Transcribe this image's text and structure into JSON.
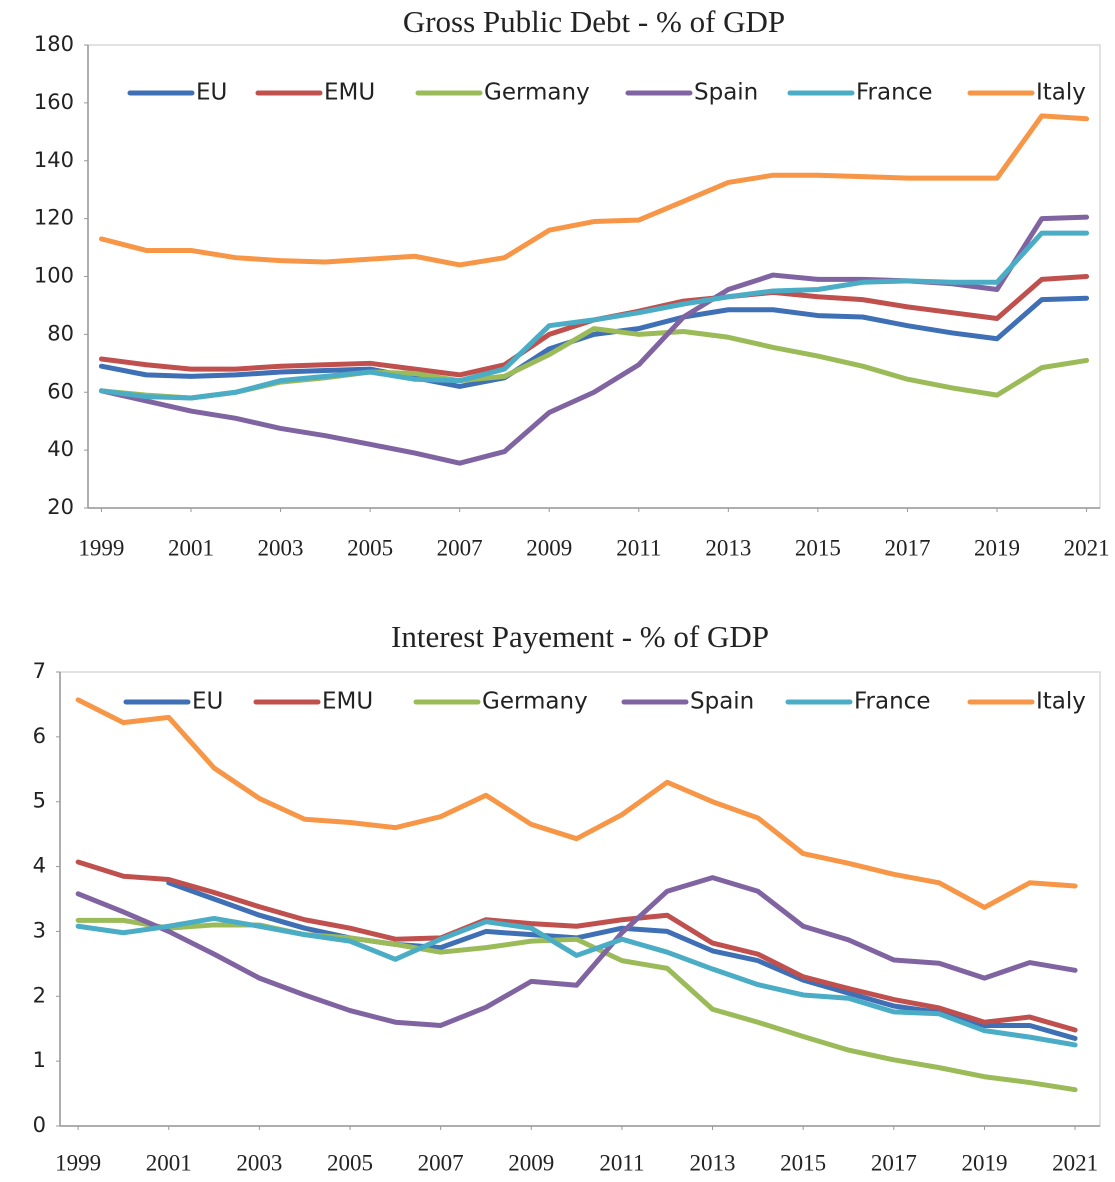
{
  "chart_data": [
    {
      "type": "line",
      "title": "Gross Public Debt - % of GDP",
      "x": [
        1999,
        2000,
        2001,
        2002,
        2003,
        2004,
        2005,
        2006,
        2007,
        2008,
        2009,
        2010,
        2011,
        2012,
        2013,
        2014,
        2015,
        2016,
        2017,
        2018,
        2019,
        2020,
        2021
      ],
      "xlim": [
        1998.7,
        2021.3
      ],
      "xticks": [
        1999,
        2001,
        2003,
        2005,
        2007,
        2009,
        2011,
        2013,
        2015,
        2017,
        2019,
        2021
      ],
      "ylim": [
        20,
        180
      ],
      "yticks": [
        20,
        40,
        60,
        80,
        100,
        120,
        140,
        160,
        180
      ],
      "grid": false,
      "legend": "top",
      "series": [
        {
          "name": "EU",
          "color": "#3f6fb5",
          "values": [
            69,
            66,
            65.5,
            66,
            67,
            67.5,
            68,
            65,
            62,
            65,
            75,
            80,
            82,
            86,
            88.5,
            88.5,
            86.5,
            86,
            83,
            80.5,
            78.5,
            92,
            92.5
          ]
        },
        {
          "name": "EMU",
          "color": "#c0504d",
          "values": [
            71.5,
            69.5,
            68,
            68,
            69,
            69.5,
            70,
            68,
            66,
            69.5,
            80,
            85,
            88,
            91.5,
            93,
            94.5,
            93,
            92,
            89.5,
            87.5,
            85.5,
            99,
            100
          ]
        },
        {
          "name": "Germany",
          "color": "#9bbb59",
          "values": [
            60.5,
            59,
            58,
            60,
            63.5,
            65,
            67,
            66.5,
            64,
            65.5,
            73,
            82,
            80,
            81,
            79,
            75.5,
            72.5,
            69,
            64.5,
            61.5,
            59,
            68.5,
            71
          ]
        },
        {
          "name": "Spain",
          "color": "#8064a2",
          "values": [
            60.5,
            57,
            53.5,
            51,
            47.5,
            45,
            42,
            39,
            35.5,
            39.5,
            53,
            60,
            69.5,
            86,
            95.5,
            100.5,
            99,
            99,
            98.5,
            97.5,
            95.5,
            120,
            120.5
          ]
        },
        {
          "name": "France",
          "color": "#4bacc6",
          "values": [
            60.5,
            58.5,
            58,
            60,
            64,
            65.5,
            67,
            64.5,
            64,
            68,
            83,
            85,
            87.5,
            90.5,
            93,
            95,
            95.5,
            98,
            98.5,
            98,
            98,
            115,
            115
          ]
        },
        {
          "name": "Italy",
          "color": "#f79646",
          "values": [
            113,
            109,
            109,
            106.5,
            105.5,
            105,
            106,
            107,
            104,
            106.5,
            116,
            119,
            119.5,
            126,
            132.5,
            135,
            135,
            134.5,
            134,
            134,
            134,
            155.5,
            154.5
          ]
        }
      ]
    },
    {
      "type": "line",
      "title": "Interest Payement - % of GDP",
      "x": [
        1999,
        2000,
        2001,
        2002,
        2003,
        2004,
        2005,
        2006,
        2007,
        2008,
        2009,
        2010,
        2011,
        2012,
        2013,
        2014,
        2015,
        2016,
        2017,
        2018,
        2019,
        2020,
        2021
      ],
      "xlim": [
        1998.6,
        2021.55
      ],
      "xticks": [
        1999,
        2001,
        2003,
        2005,
        2007,
        2009,
        2011,
        2013,
        2015,
        2017,
        2019,
        2021
      ],
      "ylim": [
        0,
        7
      ],
      "yticks": [
        0,
        1,
        2,
        3,
        4,
        5,
        6,
        7
      ],
      "grid": false,
      "legend": "top",
      "series": [
        {
          "name": "EU",
          "color": "#3f6fb5",
          "values": [
            null,
            null,
            3.75,
            3.5,
            3.25,
            3.05,
            2.9,
            2.8,
            2.75,
            3.0,
            2.95,
            2.9,
            3.05,
            3.0,
            2.7,
            2.55,
            2.25,
            2.05,
            1.85,
            1.75,
            1.55,
            1.55,
            1.35
          ]
        },
        {
          "name": "EMU",
          "color": "#c0504d",
          "values": [
            4.07,
            3.85,
            3.8,
            3.6,
            3.38,
            3.18,
            3.05,
            2.88,
            2.9,
            3.18,
            3.12,
            3.08,
            3.18,
            3.25,
            2.82,
            2.65,
            2.3,
            2.12,
            1.95,
            1.82,
            1.6,
            1.68,
            1.48
          ]
        },
        {
          "name": "Germany",
          "color": "#9bbb59",
          "values": [
            3.17,
            3.17,
            3.05,
            3.1,
            3.1,
            2.95,
            2.9,
            2.8,
            2.68,
            2.75,
            2.85,
            2.88,
            2.55,
            2.43,
            1.8,
            1.6,
            1.38,
            1.17,
            1.02,
            0.9,
            0.76,
            0.67,
            0.56
          ]
        },
        {
          "name": "Spain",
          "color": "#8064a2",
          "values": [
            3.58,
            3.3,
            3.0,
            2.65,
            2.28,
            2.02,
            1.78,
            1.6,
            1.55,
            1.83,
            2.23,
            2.17,
            2.98,
            3.62,
            3.83,
            3.62,
            3.08,
            2.87,
            2.56,
            2.51,
            2.28,
            2.52,
            2.4
          ]
        },
        {
          "name": "France",
          "color": "#4bacc6",
          "values": [
            3.08,
            2.98,
            3.08,
            3.2,
            3.08,
            2.95,
            2.85,
            2.57,
            2.88,
            3.15,
            3.05,
            2.63,
            2.88,
            2.68,
            2.42,
            2.18,
            2.02,
            1.97,
            1.76,
            1.73,
            1.47,
            1.37,
            1.25
          ]
        },
        {
          "name": "Italy",
          "color": "#f79646",
          "values": [
            6.57,
            6.22,
            6.3,
            5.52,
            5.05,
            4.73,
            4.68,
            4.6,
            4.77,
            5.1,
            4.65,
            4.43,
            4.8,
            5.3,
            5.0,
            4.75,
            4.2,
            4.05,
            3.88,
            3.75,
            3.37,
            3.75,
            3.7
          ]
        }
      ]
    }
  ]
}
